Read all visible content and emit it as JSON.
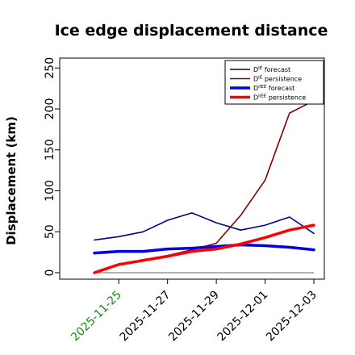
{
  "chart_data": {
    "type": "line",
    "title": "Ice edge displacement distance",
    "ylabel": "Displacement (km)",
    "xlabel": "",
    "ylim": [
      0,
      260
    ],
    "yticks": [
      0,
      50,
      100,
      150,
      200,
      250
    ],
    "x": [
      "2025-11-24",
      "2025-11-25",
      "2025-11-26",
      "2025-11-27",
      "2025-11-28",
      "2025-11-29",
      "2025-11-30",
      "2025-12-01",
      "2025-12-02",
      "2025-12-03"
    ],
    "xlim": [
      "2025-11-23",
      "2025-12-03"
    ],
    "xticks": [
      "2025-11-25",
      "2025-11-27",
      "2025-11-29",
      "2025-12-01",
      "2025-12-03"
    ],
    "xtick_colors": [
      "#1a8a1a",
      "#000000",
      "#000000",
      "#000000",
      "#000000"
    ],
    "grid": false,
    "legend_position": "top-right",
    "series": [
      {
        "name_main": "D",
        "name_sup": "IE",
        "name_tail": " forecast",
        "color": "#00008b",
        "width": 1.6,
        "values": [
          40,
          44,
          50,
          64,
          73,
          61,
          52,
          58,
          68,
          48
        ]
      },
      {
        "name_main": "D",
        "name_sup": "IE",
        "name_tail": " persistence",
        "color": "#800000",
        "width": 1.6,
        "values": [
          0,
          10,
          16,
          21,
          28,
          36,
          70,
          113,
          195,
          210
        ]
      },
      {
        "name_main": "D",
        "name_sup": "IIEE",
        "name_tail": " forecast",
        "color": "#0000e6",
        "width": 3.5,
        "values": [
          24,
          26,
          26,
          29,
          30,
          32,
          34,
          33,
          31,
          28
        ]
      },
      {
        "name_main": "D",
        "name_sup": "IIEE",
        "name_tail": " persistence",
        "color": "#ff0000",
        "width": 3.5,
        "values": [
          0,
          10,
          15,
          20,
          26,
          29,
          35,
          43,
          52,
          58
        ]
      }
    ],
    "reference_line": {
      "value": 0,
      "color": "#666666"
    }
  }
}
